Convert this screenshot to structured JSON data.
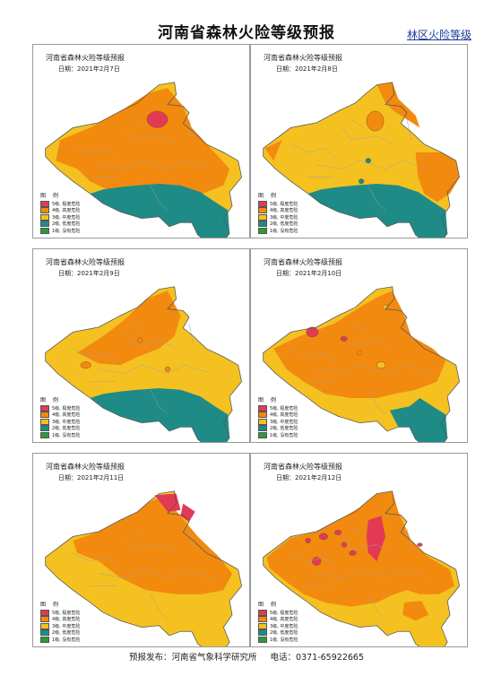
{
  "header": {
    "title": "河南省森林火险等级预报",
    "link_label": "林区火险等级"
  },
  "panel_title": "河南省森林火险等级预报",
  "legend": {
    "heading": "图 例",
    "items": [
      {
        "label": "5级, 极度危险",
        "color": "#e23a55"
      },
      {
        "label": "4级, 高度危险",
        "color": "#f28a0f"
      },
      {
        "label": "3级, 中度危险",
        "color": "#f4c120"
      },
      {
        "label": "2级, 低度危险",
        "color": "#1f8b86"
      },
      {
        "label": "1级, 没有危险",
        "color": "#2a9a3a"
      }
    ]
  },
  "panels": [
    {
      "date": "日期：2021年2月7日"
    },
    {
      "date": "日期：2021年2月8日"
    },
    {
      "date": "日期：2021年2月9日"
    },
    {
      "date": "日期：2021年2月10日"
    },
    {
      "date": "日期：2021年2月11日"
    },
    {
      "date": "日期：2021年2月12日"
    }
  ],
  "footer": {
    "publisher": "预报发布：河南省气象科学研究所",
    "phone": "电话：0371-65922665"
  }
}
